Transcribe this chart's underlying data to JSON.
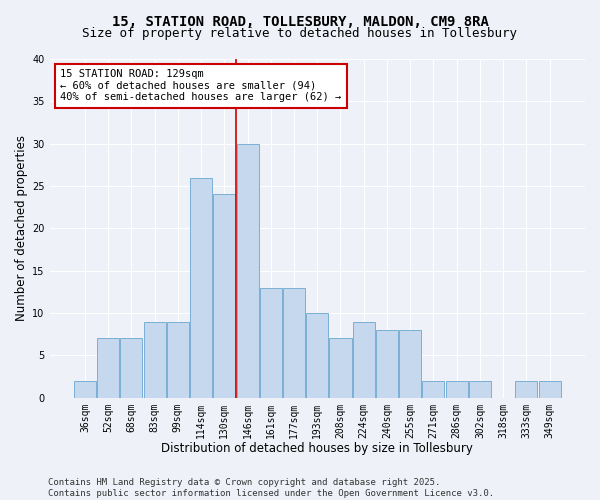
{
  "title1": "15, STATION ROAD, TOLLESBURY, MALDON, CM9 8RA",
  "title2": "Size of property relative to detached houses in Tollesbury",
  "xlabel": "Distribution of detached houses by size in Tollesbury",
  "ylabel": "Number of detached properties",
  "categories": [
    "36sqm",
    "52sqm",
    "68sqm",
    "83sqm",
    "99sqm",
    "114sqm",
    "130sqm",
    "146sqm",
    "161sqm",
    "177sqm",
    "193sqm",
    "208sqm",
    "224sqm",
    "240sqm",
    "255sqm",
    "271sqm",
    "286sqm",
    "302sqm",
    "318sqm",
    "333sqm",
    "349sqm"
  ],
  "values": [
    2,
    7,
    7,
    9,
    9,
    26,
    24,
    30,
    13,
    13,
    10,
    7,
    9,
    8,
    8,
    2,
    2,
    2,
    0,
    2,
    2
  ],
  "bar_color": "#c5d8ed",
  "bar_edge_color": "#7aafd4",
  "vline_x_index": 7,
  "vline_color": "#cc0000",
  "annotation_text": "15 STATION ROAD: 129sqm\n← 60% of detached houses are smaller (94)\n40% of semi-detached houses are larger (62) →",
  "annotation_box_color": "#ffffff",
  "annotation_box_edge": "#cc0000",
  "ylim": [
    0,
    40
  ],
  "yticks": [
    0,
    5,
    10,
    15,
    20,
    25,
    30,
    35,
    40
  ],
  "background_color": "#eef2f8",
  "plot_bg_color": "#eef2f8",
  "footer": "Contains HM Land Registry data © Crown copyright and database right 2025.\nContains public sector information licensed under the Open Government Licence v3.0.",
  "title_fontsize": 10,
  "subtitle_fontsize": 9,
  "axis_label_fontsize": 8.5,
  "tick_fontsize": 7,
  "footer_fontsize": 6.5,
  "ann_fontsize": 7.5
}
